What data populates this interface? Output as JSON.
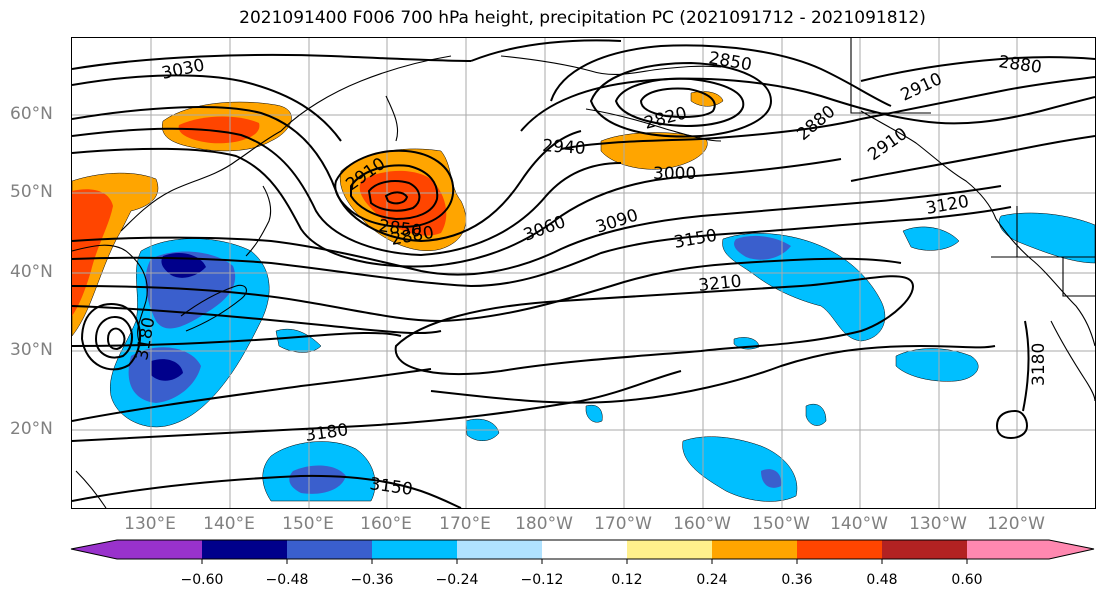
{
  "title": "2021091400 F006 700 hPa height, precipitation PC (2021091712 - 2021091812)",
  "lat_labels": [
    "60°N",
    "50°N",
    "40°N",
    "30°N",
    "20°N"
  ],
  "lon_labels": [
    "130°E",
    "140°E",
    "150°E",
    "160°E",
    "170°E",
    "180°W",
    "170°W",
    "160°W",
    "150°W",
    "140°W",
    "130°W",
    "120°W"
  ],
  "contour_labels": [
    "3030",
    "2850",
    "2880",
    "2820",
    "2880",
    "2910",
    "2940",
    "3000",
    "2910",
    "2910",
    "2850",
    "2880",
    "3060",
    "3090",
    "3150",
    "3120",
    "3210",
    "3180",
    "3180",
    "3150",
    "3180"
  ],
  "colorbar": {
    "ticks": [
      "−0.60",
      "−0.48",
      "−0.36",
      "−0.24",
      "−0.12",
      "0.12",
      "0.24",
      "0.36",
      "0.48",
      "0.60"
    ],
    "colors": [
      "#9932cc",
      "#00008b",
      "#3a5fcd",
      "#00bfff",
      "#b0e2ff",
      "#ffffff",
      "#fff08c",
      "#ffa500",
      "#ff4500",
      "#b22222",
      "#ff88b0"
    ]
  },
  "colors": {
    "contour": "#000000",
    "grid": "#aaaaaa",
    "coast": "#000000"
  }
}
